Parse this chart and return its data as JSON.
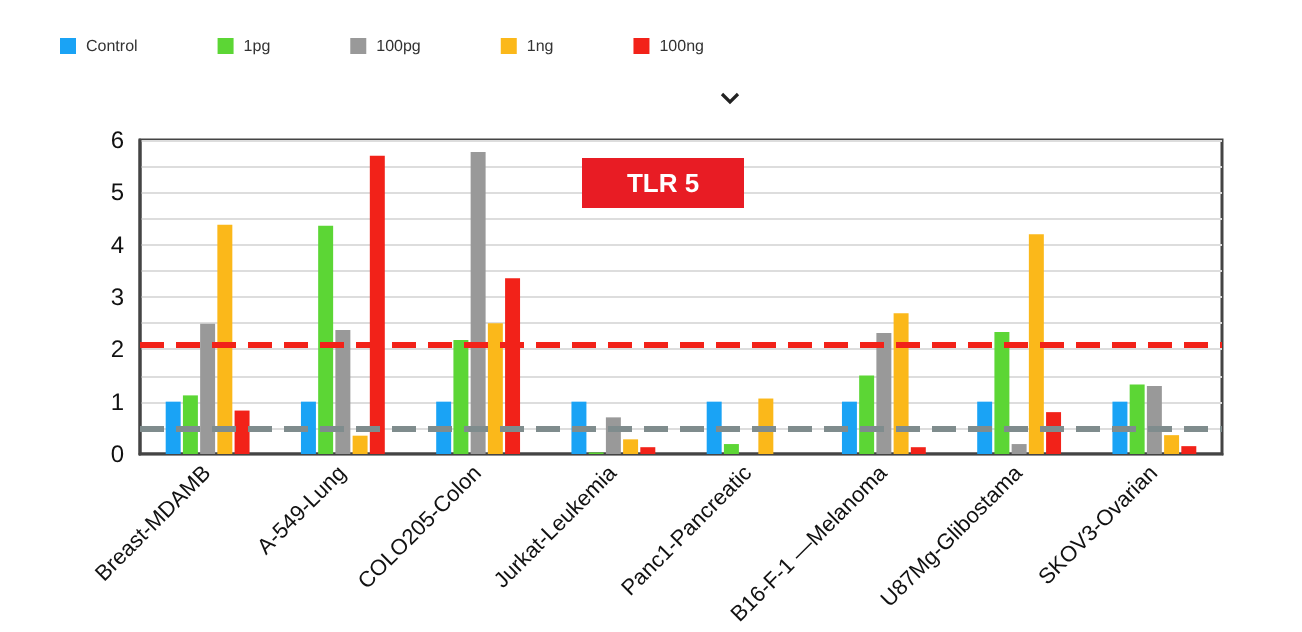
{
  "chart_data": {
    "type": "bar",
    "title": "TLR 5",
    "categories": [
      "Breast-MDAMB",
      "A-549-Lung",
      "COLO205-Colon",
      "Jurkat-Leukemia",
      "Panc1-Pancreatic",
      "B16-F-1 —Melanoma",
      "U87Mg-Glibostama",
      "SKOV3-Ovarian"
    ],
    "series": [
      {
        "name": "Control",
        "color": "#1aa3f5",
        "values": [
          1.0,
          1.0,
          1.0,
          1.0,
          1.0,
          1.0,
          1.0,
          1.0
        ]
      },
      {
        "name": "1pg",
        "color": "#5cd635",
        "values": [
          1.12,
          4.36,
          2.18,
          0.03,
          0.19,
          1.5,
          2.33,
          1.33
        ]
      },
      {
        "name": "100pg",
        "color": "#999999",
        "values": [
          2.49,
          2.37,
          5.77,
          0.7,
          null,
          2.31,
          0.19,
          1.3
        ]
      },
      {
        "name": "1ng",
        "color": "#fbb81a",
        "values": [
          4.38,
          0.35,
          2.5,
          0.28,
          1.06,
          2.69,
          4.2,
          0.36
        ]
      },
      {
        "name": "100ng",
        "color": "#f22219",
        "values": [
          0.83,
          5.7,
          3.36,
          0.13,
          null,
          0.13,
          0.8,
          0.15
        ]
      }
    ],
    "ylim": [
      0,
      6
    ],
    "yticks": [
      0,
      {
        "value": 0.5,
        "label": null
      },
      1,
      {
        "value": 1.5,
        "label": null
      },
      2,
      {
        "value": 2.5,
        "label": null
      },
      3,
      {
        "value": 3.5,
        "label": null
      },
      4,
      {
        "value": 4.5,
        "label": null
      },
      5,
      {
        "value": 5.5,
        "label": null
      },
      6
    ],
    "ref_lines": [
      {
        "axis": "y",
        "value": 2.1,
        "color": "#f22219",
        "line_style": "dashed"
      },
      {
        "axis": "y",
        "value": 0.5,
        "color": "#7f8c8d",
        "line_style": "dashed"
      }
    ],
    "grid": "y",
    "legend": "top left"
  }
}
